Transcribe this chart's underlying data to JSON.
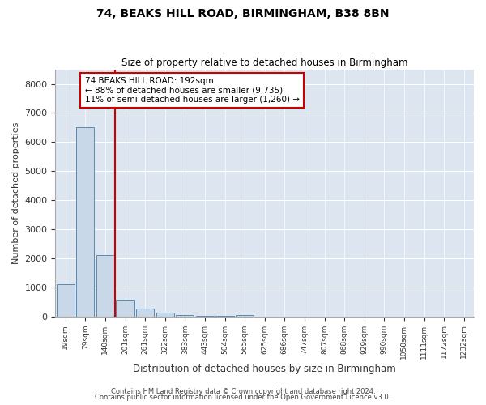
{
  "title_line1": "74, BEAKS HILL ROAD, BIRMINGHAM, B38 8BN",
  "title_line2": "Size of property relative to detached houses in Birmingham",
  "xlabel": "Distribution of detached houses by size in Birmingham",
  "ylabel": "Number of detached properties",
  "footnote1": "Contains HM Land Registry data © Crown copyright and database right 2024.",
  "footnote2": "Contains public sector information licensed under the Open Government Licence v3.0.",
  "annotation_line1": "74 BEAKS HILL ROAD: 192sqm",
  "annotation_line2": "← 88% of detached houses are smaller (9,735)",
  "annotation_line3": "11% of semi-detached houses are larger (1,260) →",
  "bar_color": "#c8d8e8",
  "bar_edge_color": "#5a8ab0",
  "vline_color": "#cc0000",
  "annotation_box_color": "#cc0000",
  "background_color": "#dde6f0",
  "ylim": [
    0,
    8500
  ],
  "yticks": [
    0,
    1000,
    2000,
    3000,
    4000,
    5000,
    6000,
    7000,
    8000
  ],
  "bin_labels": [
    "19sqm",
    "79sqm",
    "140sqm",
    "201sqm",
    "261sqm",
    "322sqm",
    "383sqm",
    "443sqm",
    "504sqm",
    "565sqm",
    "625sqm",
    "686sqm",
    "747sqm",
    "807sqm",
    "868sqm",
    "929sqm",
    "990sqm",
    "1050sqm",
    "1111sqm",
    "1172sqm",
    "1232sqm"
  ],
  "bar_values": [
    1100,
    6500,
    2100,
    580,
    280,
    120,
    60,
    25,
    8,
    50,
    0,
    0,
    0,
    0,
    0,
    0,
    0,
    0,
    0,
    0,
    0
  ],
  "vline_x": 2.5,
  "title_fontsize": 10,
  "subtitle_fontsize": 8.5,
  "ylabel_fontsize": 8,
  "xlabel_fontsize": 8.5,
  "ytick_fontsize": 8,
  "xtick_fontsize": 6.5,
  "footnote_fontsize": 6.0
}
